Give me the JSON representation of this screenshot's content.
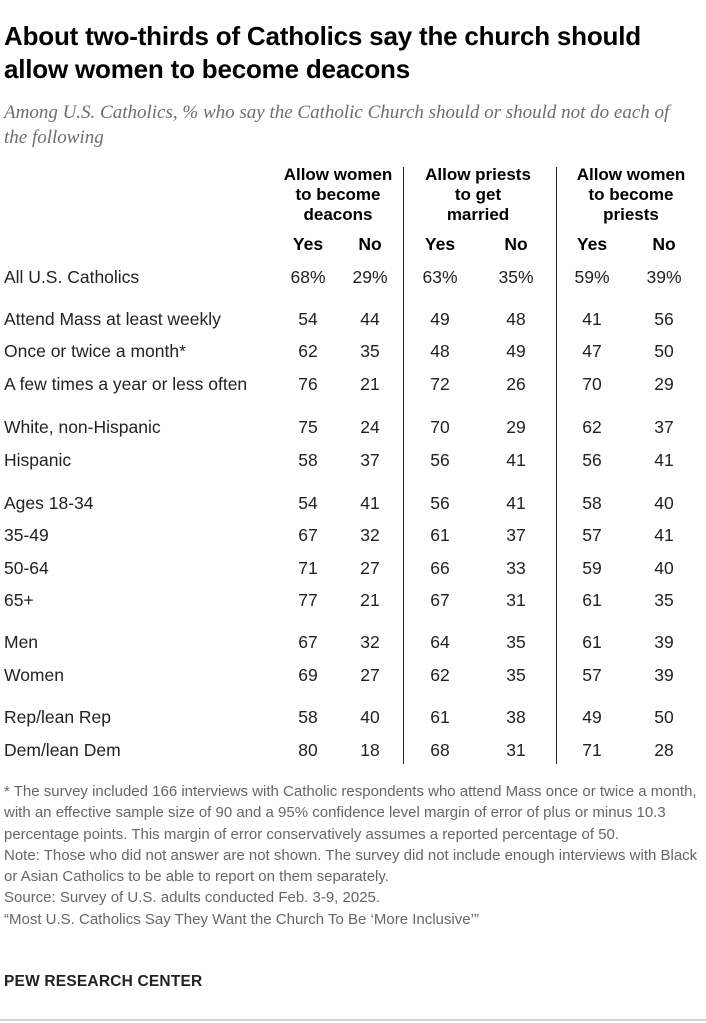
{
  "title": "About two-thirds of Catholics say the church should allow women to become deacons",
  "subtitle": "Among U.S. Catholics, % who say the Catholic Church should or should not do each of the following",
  "chart_data": {
    "type": "table",
    "columns": [
      {
        "title": "Allow women to become deacons",
        "title_lines": [
          "Allow women",
          "to become",
          "deacons"
        ],
        "subcolumns": [
          "Yes",
          "No"
        ]
      },
      {
        "title": "Allow priests to get married",
        "title_lines": [
          "Allow priests",
          "to get",
          "married"
        ],
        "subcolumns": [
          "Yes",
          "No"
        ]
      },
      {
        "title": "Allow women to become priests",
        "title_lines": [
          "Allow women",
          "to become",
          "priests"
        ],
        "subcolumns": [
          "Yes",
          "No"
        ]
      }
    ],
    "rows": [
      {
        "label": "All U.S. Catholics",
        "values": [
          "68%",
          "29%",
          "63%",
          "35%",
          "59%",
          "39%"
        ]
      },
      {
        "label": "Attend Mass at least weekly",
        "values": [
          "54",
          "44",
          "49",
          "48",
          "41",
          "56"
        ]
      },
      {
        "label": "Once or twice a month*",
        "values": [
          "62",
          "35",
          "48",
          "49",
          "47",
          "50"
        ]
      },
      {
        "label": "A few times a year or less often",
        "values": [
          "76",
          "21",
          "72",
          "26",
          "70",
          "29"
        ]
      },
      {
        "label": "White, non-Hispanic",
        "values": [
          "75",
          "24",
          "70",
          "29",
          "62",
          "37"
        ]
      },
      {
        "label": "Hispanic",
        "values": [
          "58",
          "37",
          "56",
          "41",
          "56",
          "41"
        ]
      },
      {
        "label": "Ages 18-34",
        "values": [
          "54",
          "41",
          "56",
          "41",
          "58",
          "40"
        ]
      },
      {
        "label": "35-49",
        "values": [
          "67",
          "32",
          "61",
          "37",
          "57",
          "41"
        ]
      },
      {
        "label": "50-64",
        "values": [
          "71",
          "27",
          "66",
          "33",
          "59",
          "40"
        ]
      },
      {
        "label": "65+",
        "values": [
          "77",
          "21",
          "67",
          "31",
          "61",
          "35"
        ]
      },
      {
        "label": "Men",
        "values": [
          "67",
          "32",
          "64",
          "35",
          "61",
          "39"
        ]
      },
      {
        "label": "Women",
        "values": [
          "69",
          "27",
          "62",
          "35",
          "57",
          "39"
        ]
      },
      {
        "label": "Rep/lean Rep",
        "values": [
          "58",
          "40",
          "61",
          "38",
          "49",
          "50"
        ]
      },
      {
        "label": "Dem/lean Dem",
        "values": [
          "80",
          "18",
          "68",
          "31",
          "71",
          "28"
        ]
      }
    ]
  },
  "notes": [
    "* The survey included 166 interviews with Catholic respondents who attend Mass once or twice a month, with an effective sample size of 90 and a 95% confidence level margin of error of plus or minus 10.3 percentage points. This margin of error conservatively assumes a reported percentage of 50.",
    "Note: Those who did not answer are not shown. The survey did not include enough interviews with Black or Asian Catholics to be able to report on them separately.",
    "Source: Survey of U.S. adults conducted Feb. 3-9, 2025.",
    "“Most U.S. Catholics Say They Want the Church To Be ‘More Inclusive’”"
  ],
  "brand": "PEW RESEARCH CENTER",
  "colors": {
    "text": "#222222",
    "notes": "#666666",
    "subtitle": "#6d6d6d"
  }
}
